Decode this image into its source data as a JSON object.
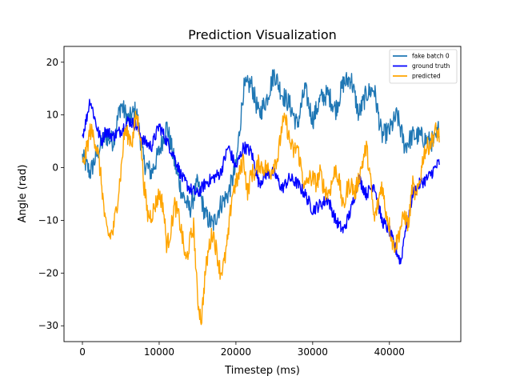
{
  "chart_data": {
    "type": "line",
    "title": "Prediction Visualization",
    "xlabel": "Timestep (ms)",
    "ylabel": "Angle (rad)",
    "xlim": [
      -2400,
      49300
    ],
    "ylim": [
      -33,
      23
    ],
    "xticks": [
      {
        "value": 0,
        "label": "0"
      },
      {
        "value": 10000,
        "label": "10000"
      },
      {
        "value": 20000,
        "label": "20000"
      },
      {
        "value": 30000,
        "label": "30000"
      },
      {
        "value": 40000,
        "label": "40000"
      }
    ],
    "yticks": [
      {
        "value": -30,
        "label": "−30"
      },
      {
        "value": -20,
        "label": "−20"
      },
      {
        "value": -10,
        "label": "−10"
      },
      {
        "value": 0,
        "label": "0"
      },
      {
        "value": 10,
        "label": "10"
      },
      {
        "value": 20,
        "label": "20"
      }
    ],
    "grid": false,
    "legend_position": "top-right",
    "series": [
      {
        "name": "fake batch 0",
        "color": "#1f77b4",
        "noise": 2.0,
        "x": [
          0,
          1000,
          2000,
          3000,
          4000,
          5000,
          6000,
          7000,
          8000,
          9000,
          10000,
          11000,
          12000,
          13000,
          14000,
          15000,
          16000,
          17000,
          18000,
          19000,
          20000,
          21000,
          22000,
          23000,
          24000,
          25000,
          26000,
          27000,
          28000,
          29000,
          30000,
          31000,
          32000,
          33000,
          34000,
          35000,
          36000,
          37000,
          38000,
          39000,
          40000,
          41000,
          42000,
          43000,
          44000,
          45000,
          46000,
          46500
        ],
        "y": [
          2,
          -1,
          3,
          6,
          5,
          12,
          9,
          11,
          1,
          -1,
          3,
          8,
          1,
          -5,
          -8,
          -3,
          -9,
          -11,
          -7,
          -5,
          0,
          15,
          16,
          10,
          13,
          18,
          14,
          12,
          8,
          15,
          9,
          13,
          14,
          11,
          16,
          17,
          10,
          14,
          15,
          6,
          7,
          10,
          4,
          6,
          6,
          5,
          5,
          8
        ]
      },
      {
        "name": "ground truth",
        "color": "#0000ff",
        "noise": 1.2,
        "x": [
          0,
          500,
          1000,
          1500,
          2000,
          2500,
          3000,
          4000,
          5000,
          6000,
          7000,
          8000,
          9000,
          10000,
          11000,
          12000,
          13000,
          14000,
          15000,
          16000,
          17000,
          18000,
          19000,
          20000,
          21000,
          22000,
          23000,
          24000,
          25000,
          26000,
          27000,
          28000,
          29000,
          30000,
          31000,
          32000,
          33000,
          34000,
          35000,
          36000,
          37000,
          38000,
          39000,
          40000,
          40700,
          41500,
          42000,
          42500,
          43000,
          44000,
          45000,
          46000,
          46500
        ],
        "y": [
          6,
          9,
          13,
          10,
          7,
          5,
          7,
          6,
          7,
          9,
          8,
          5,
          4,
          8,
          5,
          2,
          -2,
          -4,
          -5,
          -3,
          -2,
          -1,
          4,
          0,
          4,
          3,
          -3,
          -1,
          -1,
          -4,
          -2,
          -3,
          -5,
          -8,
          -7,
          -6,
          -10,
          -12,
          -8,
          -2,
          -5,
          -3,
          -10,
          -12,
          -15,
          -18,
          -12,
          -10,
          -5,
          -3,
          -2,
          0,
          1
        ]
      },
      {
        "name": "predicted",
        "color": "#ffa500",
        "noise": 1.8,
        "x": [
          0,
          500,
          1000,
          1500,
          2000,
          2500,
          3000,
          3500,
          4000,
          4500,
          5000,
          5500,
          6000,
          6500,
          7000,
          7500,
          8000,
          8500,
          9000,
          9500,
          10000,
          10500,
          11000,
          11500,
          12000,
          12500,
          13000,
          13500,
          14000,
          14500,
          15000,
          15500,
          16000,
          16500,
          17000,
          17500,
          18000,
          18500,
          19000,
          19500,
          20000,
          20500,
          21000,
          21500,
          22000,
          22500,
          23000,
          23500,
          24000,
          24500,
          25000,
          25500,
          26000,
          26500,
          27000,
          27500,
          28000,
          28500,
          29000,
          29500,
          30000,
          30500,
          31000,
          31500,
          32000,
          32500,
          33000,
          33500,
          34000,
          34500,
          35000,
          35500,
          36000,
          36500,
          37000,
          37500,
          38000,
          38500,
          39000,
          39500,
          40000,
          40500,
          41000,
          41500,
          42000,
          42500,
          43000,
          43500,
          44000,
          44500,
          45000,
          45500,
          46000,
          46500
        ],
        "y": [
          0,
          3,
          7,
          6,
          3,
          -3,
          -11,
          -13,
          -12,
          -7,
          -1,
          7,
          6,
          5,
          10,
          7,
          -3,
          -9,
          -9,
          -7,
          -5,
          -7,
          -15,
          -12,
          -7,
          -9,
          -13,
          -18,
          -14,
          -11,
          -25,
          -29,
          -20,
          -15,
          -12,
          -16,
          -20,
          -18,
          -13,
          -5,
          -3,
          -1,
          2,
          -5,
          -1,
          -1,
          1,
          0,
          0,
          -1,
          1,
          2,
          8,
          9,
          5,
          3,
          4,
          0,
          -4,
          -2,
          -2,
          -3,
          -1,
          -4,
          -5,
          -3,
          0,
          -3,
          -8,
          -4,
          -3,
          -5,
          -2,
          1,
          4,
          -2,
          -10,
          -7,
          -3,
          -8,
          -11,
          -15,
          -14,
          -11,
          -9,
          -11,
          -3,
          -6,
          -2,
          3,
          4,
          5,
          7,
          6
        ]
      }
    ]
  }
}
